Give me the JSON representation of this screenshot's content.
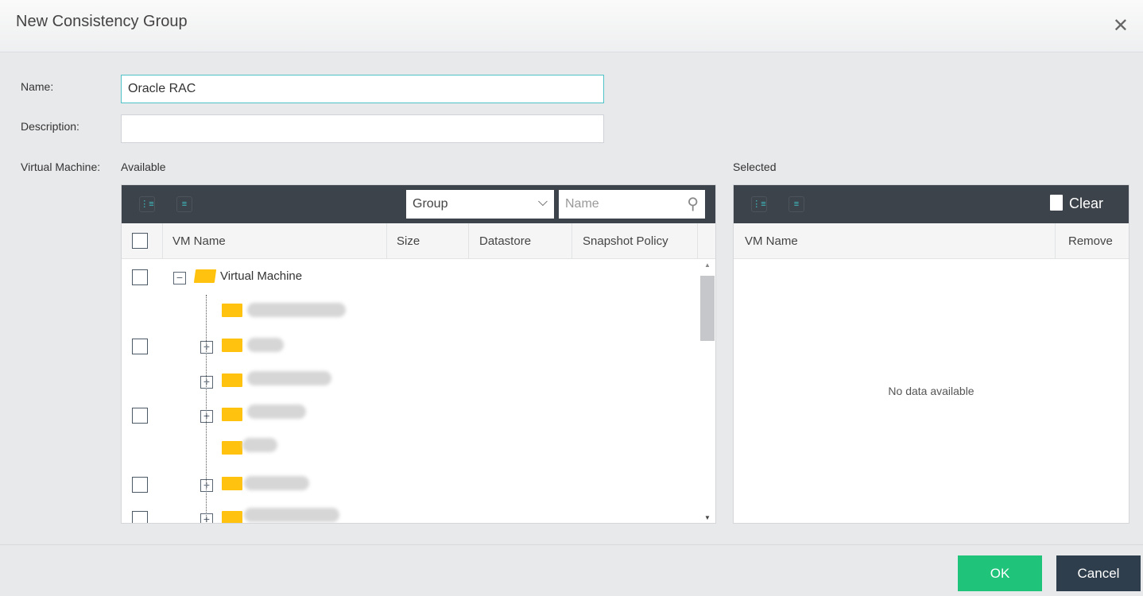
{
  "dialog": {
    "title": "New Consistency Group",
    "close_icon": "close-icon"
  },
  "form": {
    "name_label": "Name:",
    "name_value": "Oracle RAC",
    "description_label": "Description:",
    "description_value": "",
    "vm_label": "Virtual Machine:"
  },
  "available": {
    "label": "Available",
    "filter_select": "Group",
    "search_placeholder": "Name",
    "columns": [
      "VM Name",
      "Size",
      "Datastore",
      "Snapshot Policy"
    ],
    "root": "Virtual Machine"
  },
  "selected": {
    "label": "Selected",
    "clear_label": "Clear",
    "columns": [
      "VM Name",
      "Remove"
    ],
    "empty": "No data available"
  },
  "footer": {
    "ok": "OK",
    "cancel": "Cancel"
  },
  "colors": {
    "toolbar": "#3d434b",
    "ok": "#1fc37a",
    "cancel": "#2f3e4c",
    "folder": "#ffc20e",
    "accent": "#3ec1c6"
  }
}
